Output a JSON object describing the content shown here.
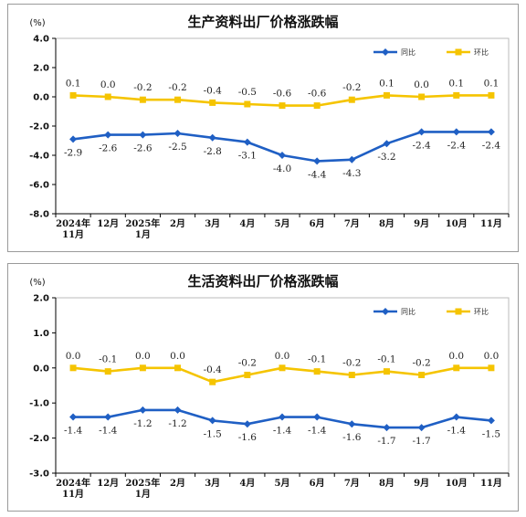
{
  "colors": {
    "yoy": "#1F5FC4",
    "mom": "#F5C400",
    "axis": "#000000",
    "border": "#9a9a9a"
  },
  "chart_data": [
    {
      "type": "line",
      "title": "生产资料出厂价格涨跌幅",
      "ylabel": "(%)",
      "ylim": [
        -8.0,
        4.0
      ],
      "yticks": [
        "4.0",
        "2.0",
        "0.0",
        "-2.0",
        "-4.0",
        "-6.0",
        "-8.0"
      ],
      "ytick_values": [
        4,
        2,
        0,
        -2,
        -4,
        -6,
        -8
      ],
      "categories": [
        [
          "2024年",
          "11月"
        ],
        [
          "12月"
        ],
        [
          "2025年",
          "1月"
        ],
        [
          "2月"
        ],
        [
          "3月"
        ],
        [
          "4月"
        ],
        [
          "5月"
        ],
        [
          "6月"
        ],
        [
          "7月"
        ],
        [
          "8月"
        ],
        [
          "9月"
        ],
        [
          "10月"
        ],
        [
          "11月"
        ]
      ],
      "legend": {
        "position": "top-right"
      },
      "grid": false,
      "series": [
        {
          "name": "同比",
          "color": "#1F5FC4",
          "values": [
            -2.9,
            -2.6,
            -2.6,
            -2.5,
            -2.8,
            -3.1,
            -4.0,
            -4.4,
            -4.3,
            -3.2,
            -2.4,
            -2.4,
            -2.4
          ],
          "labels": [
            "-2.9",
            "-2.6",
            "-2.6",
            "-2.5",
            "-2.8",
            "-3.1",
            "-4.0",
            "-4.4",
            "-4.3",
            "-3.2",
            "-2.4",
            "-2.4",
            "-2.4"
          ]
        },
        {
          "name": "环比",
          "color": "#F5C400",
          "values": [
            0.1,
            0.0,
            -0.2,
            -0.2,
            -0.4,
            -0.5,
            -0.6,
            -0.6,
            -0.2,
            0.1,
            0.0,
            0.1,
            0.1
          ],
          "labels": [
            "0.1",
            "0.0",
            "-0.2",
            "-0.2",
            "-0.4",
            "-0.5",
            "-0.6",
            "-0.6",
            "-0.2",
            "0.1",
            "0.0",
            "0.1",
            "0.1"
          ]
        }
      ]
    },
    {
      "type": "line",
      "title": "生活资料出厂价格涨跌幅",
      "ylabel": "(%)",
      "ylim": [
        -3.0,
        2.0
      ],
      "yticks": [
        "2.0",
        "1.0",
        "0.0",
        "-1.0",
        "-2.0",
        "-3.0"
      ],
      "ytick_values": [
        2,
        1,
        0,
        -1,
        -2,
        -3
      ],
      "categories": [
        [
          "2024年",
          "11月"
        ],
        [
          "12月"
        ],
        [
          "2025年",
          "1月"
        ],
        [
          "2月"
        ],
        [
          "3月"
        ],
        [
          "4月"
        ],
        [
          "5月"
        ],
        [
          "6月"
        ],
        [
          "7月"
        ],
        [
          "8月"
        ],
        [
          "9月"
        ],
        [
          "10月"
        ],
        [
          "11月"
        ]
      ],
      "legend": {
        "position": "top-right"
      },
      "grid": false,
      "series": [
        {
          "name": "同比",
          "color": "#1F5FC4",
          "values": [
            -1.4,
            -1.4,
            -1.2,
            -1.2,
            -1.5,
            -1.6,
            -1.4,
            -1.4,
            -1.6,
            -1.7,
            -1.7,
            -1.4,
            -1.5
          ],
          "labels": [
            "-1.4",
            "-1.4",
            "-1.2",
            "-1.2",
            "-1.5",
            "-1.6",
            "-1.4",
            "-1.4",
            "-1.6",
            "-1.7",
            "-1.7",
            "-1.4",
            "-1.5"
          ]
        },
        {
          "name": "环比",
          "color": "#F5C400",
          "values": [
            0.0,
            -0.1,
            0.0,
            0.0,
            -0.4,
            -0.2,
            0.0,
            -0.1,
            -0.2,
            -0.1,
            -0.2,
            0.0,
            0.0
          ],
          "labels": [
            "0.0",
            "-0.1",
            "0.0",
            "0.0",
            "-0.4",
            "-0.2",
            "0.0",
            "-0.1",
            "-0.2",
            "-0.1",
            "-0.2",
            "0.0",
            "0.0"
          ]
        }
      ]
    }
  ]
}
